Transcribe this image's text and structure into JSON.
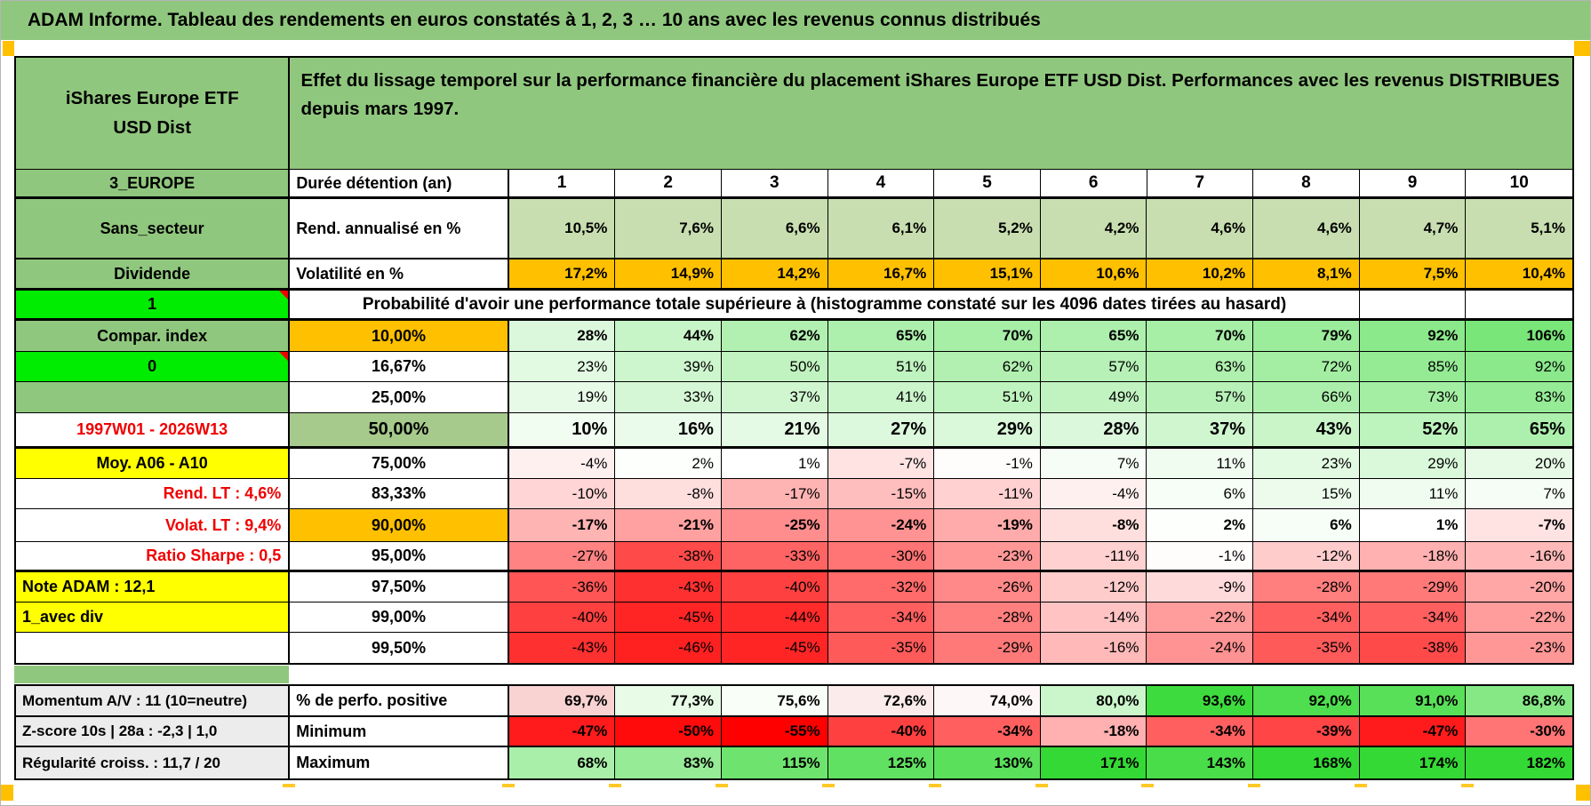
{
  "title": "ADAM Informe. Tableau des rendements en euros constatés à 1, 2, 3 … 10 ans avec les revenus connus distribués",
  "header": {
    "product": "iShares Europe ETF USD Dist",
    "description": "Effet du lissage temporel sur la performance financière du placement iShares Europe ETF USD Dist. Performances avec les revenus DISTRIBUES depuis mars 1997."
  },
  "colors": {
    "header_green": "#90C77E",
    "bright_green": "#00EC00",
    "orange": "#FFC000",
    "yellow": "#FFFF00",
    "sage": "#C8DEB0",
    "sage_dark": "#A6C98C",
    "label_gray": "#ECECEC",
    "red_text": "#F00000",
    "heat_green": "#35D935",
    "heat_red": "#FF0000"
  },
  "table": {
    "columns": [
      "1",
      "2",
      "3",
      "4",
      "5",
      "6",
      "7",
      "8",
      "9",
      "10"
    ],
    "duree_row": {
      "a": "3_EUROPE",
      "b": "Durée détention (an)"
    },
    "rend_row": {
      "a": "Sans_secteur",
      "b": "Rend. annualisé en %",
      "values": [
        "10,5%",
        "7,6%",
        "6,6%",
        "6,1%",
        "5,2%",
        "4,2%",
        "4,6%",
        "4,6%",
        "4,7%",
        "5,1%"
      ]
    },
    "volat_row": {
      "a": "Dividende",
      "b": "Volatilité en %",
      "values": [
        "17,2%",
        "14,9%",
        "14,2%",
        "16,7%",
        "15,1%",
        "10,6%",
        "10,2%",
        "8,1%",
        "7,5%",
        "10,4%"
      ]
    },
    "probability_header": {
      "a": "1",
      "text": "Probabilité d'avoir une performance totale supérieure à (histogramme constaté sur les 4096 dates tirées au hasard)"
    },
    "probability_rows": [
      {
        "a": "Compar. index",
        "threshold": "10,00%",
        "values": [
          28,
          44,
          62,
          65,
          70,
          65,
          70,
          79,
          92,
          106
        ]
      },
      {
        "a": "0",
        "threshold": "16,67%",
        "values": [
          23,
          39,
          50,
          51,
          62,
          57,
          63,
          72,
          85,
          92
        ]
      },
      {
        "a": "",
        "threshold": "25,00%",
        "values": [
          19,
          33,
          37,
          41,
          51,
          49,
          57,
          66,
          73,
          83
        ]
      },
      {
        "a": "1997W01 - 2026W13",
        "threshold": "50,00%",
        "values": [
          10,
          16,
          21,
          27,
          29,
          28,
          37,
          43,
          52,
          65
        ]
      },
      {
        "a": "Moy. A06 - A10",
        "threshold": "75,00%",
        "values": [
          -4,
          2,
          1,
          -7,
          -1,
          7,
          11,
          23,
          29,
          20
        ]
      },
      {
        "a": "Rend. LT :   4,6%",
        "threshold": "83,33%",
        "values": [
          -10,
          -8,
          -17,
          -15,
          -11,
          -4,
          6,
          15,
          11,
          7
        ]
      },
      {
        "a": "Volat. LT :   9,4%",
        "threshold": "90,00%",
        "values": [
          -17,
          -21,
          -25,
          -24,
          -19,
          -8,
          2,
          6,
          1,
          -7
        ]
      },
      {
        "a": "Ratio Sharpe :   0,5",
        "threshold": "95,00%",
        "values": [
          -27,
          -38,
          -33,
          -30,
          -23,
          -11,
          -1,
          -12,
          -18,
          -16
        ]
      },
      {
        "a": "Note ADAM : 12,1",
        "threshold": "97,50%",
        "values": [
          -36,
          -43,
          -40,
          -32,
          -26,
          -12,
          -9,
          -28,
          -29,
          -20
        ]
      },
      {
        "a": "1_avec div",
        "threshold": "99,00%",
        "values": [
          -40,
          -45,
          -44,
          -34,
          -28,
          -14,
          -22,
          -34,
          -34,
          -22
        ]
      },
      {
        "a": "",
        "threshold": "99,50%",
        "values": [
          -43,
          -46,
          -45,
          -35,
          -29,
          -16,
          -24,
          -35,
          -38,
          -23
        ]
      }
    ],
    "summary_rows": [
      {
        "a": "Momentum A/V : 11 (10=neutre)",
        "b": "% de perfo. positive",
        "values": [
          "69,7%",
          "77,3%",
          "75,6%",
          "72,6%",
          "74,0%",
          "80,0%",
          "93,6%",
          "92,0%",
          "91,0%",
          "86,8%"
        ]
      },
      {
        "a": "Z-score 10s | 28a : -2,3 | 1,0",
        "b": "Minimum",
        "values": [
          -47,
          -50,
          -55,
          -40,
          -34,
          -18,
          -34,
          -39,
          -47,
          -30
        ]
      },
      {
        "a": "Régularité croiss. : 11,7 / 20",
        "b": "Maximum",
        "values": [
          68,
          83,
          115,
          125,
          130,
          171,
          143,
          168,
          174,
          182
        ]
      }
    ]
  }
}
